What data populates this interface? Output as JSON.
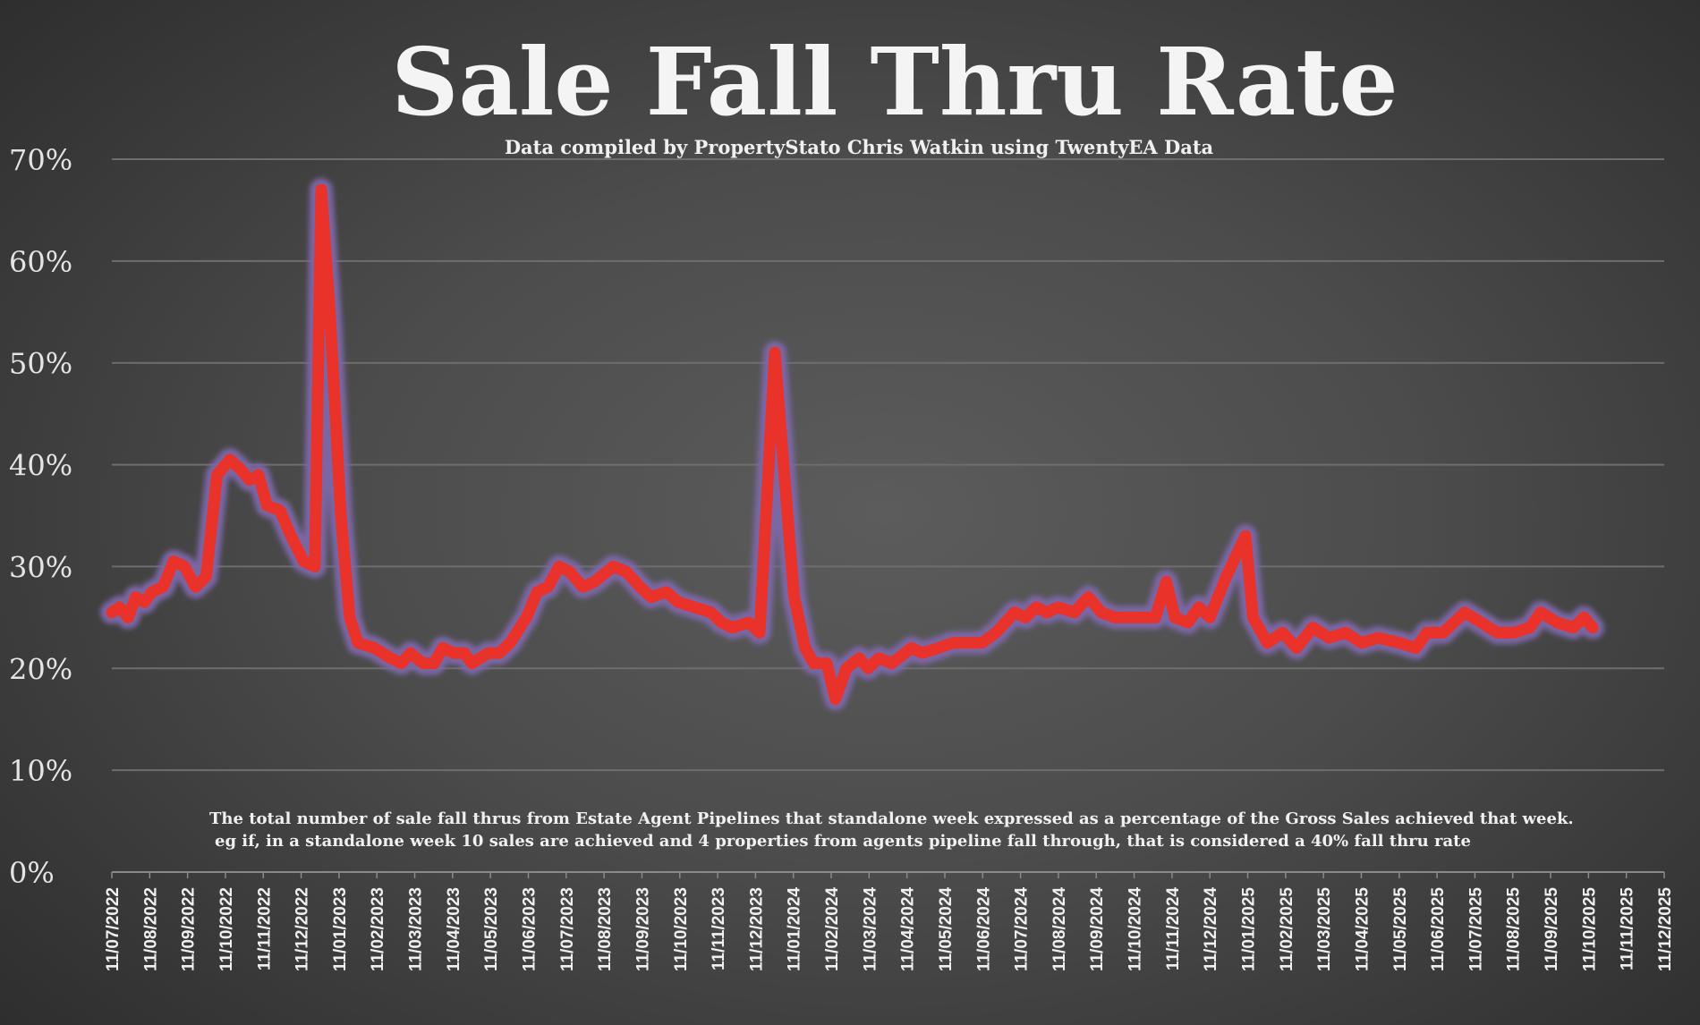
{
  "chart_data": {
    "type": "line",
    "title": "Sale Fall Thru Rate",
    "subtitle": "Data compiled by PropertyStato Chris Watkin using TwentyEA Data",
    "annotation": [
      "The total number of sale fall thrus from Estate Agent Pipelines that standalone week expressed as a percentage of the Gross Sales achieved that week.",
      "eg if, in a standalone week 10 sales are achieved and 4 properties from agents pipeline fall through, that is considered a 40%  fall thru rate"
    ],
    "xlabel": "",
    "ylabel": "",
    "x_unit": "months since 11/07/2022",
    "xlim": [
      0,
      41
    ],
    "ylim": [
      0,
      70
    ],
    "grid": true,
    "y_ticks": [
      "0%",
      "10%",
      "20%",
      "30%",
      "40%",
      "50%",
      "60%",
      "70%"
    ],
    "x_ticks": [
      "11/07/2022",
      "11/08/2022",
      "11/09/2022",
      "11/10/2022",
      "11/11/2022",
      "11/12/2022",
      "11/01/2023",
      "11/02/2023",
      "11/03/2023",
      "11/04/2023",
      "11/05/2023",
      "11/06/2023",
      "11/07/2023",
      "11/08/2023",
      "11/09/2023",
      "11/10/2023",
      "11/11/2023",
      "11/12/2023",
      "11/01/2024",
      "11/02/2024",
      "11/03/2024",
      "11/04/2024",
      "11/05/2024",
      "11/06/2024",
      "11/07/2024",
      "11/08/2024",
      "11/09/2024",
      "11/10/2024",
      "11/11/2024",
      "11/12/2024",
      "11/01/2025",
      "11/02/2025",
      "11/03/2025",
      "11/04/2025",
      "11/05/2025",
      "11/06/2025",
      "11/07/2025",
      "11/08/2025",
      "11/09/2025",
      "11/10/2025",
      "11/11/2025",
      "11/12/2025"
    ],
    "series": [
      {
        "name": "Sale Fall Thru Rate (%)",
        "color": "#e8322a",
        "glow": "#7e68a8",
        "x": [
          0,
          0.2,
          0.43,
          0.63,
          0.86,
          1.06,
          1.35,
          1.63,
          1.92,
          2.21,
          2.49,
          2.78,
          3.12,
          3.41,
          3.64,
          3.87,
          4.1,
          4.44,
          4.73,
          5.07,
          5.36,
          5.53,
          5.76,
          6.05,
          6.28,
          6.5,
          6.93,
          7.36,
          7.65,
          7.88,
          8.22,
          8.51,
          8.74,
          9.03,
          9.31,
          9.51,
          9.94,
          10.23,
          10.52,
          10.95,
          11.23,
          11.52,
          11.81,
          12.09,
          12.44,
          12.75,
          13.24,
          13.58,
          13.95,
          14.24,
          14.64,
          14.96,
          15.39,
          15.82,
          16.1,
          16.39,
          16.82,
          17.11,
          17.51,
          17.74,
          18.02,
          18.31,
          18.54,
          18.88,
          19.11,
          19.4,
          19.74,
          19.97,
          20.26,
          20.6,
          21.12,
          21.4,
          21.83,
          22.21,
          22.55,
          22.98,
          23.35,
          23.84,
          24.13,
          24.41,
          24.7,
          24.99,
          25.42,
          25.79,
          26.13,
          26.5,
          26.85,
          27.28,
          27.56,
          27.85,
          28.08,
          28.42,
          28.71,
          29,
          29.43,
          29.94,
          30.14,
          30.52,
          30.92,
          31.29,
          31.72,
          32.15,
          32.58,
          33.01,
          33.44,
          34.01,
          34.44,
          34.73,
          35.16,
          35.73,
          36.16,
          36.59,
          37.02,
          37.45,
          37.74,
          38.17,
          38.6,
          38.88,
          39.11
        ],
        "values": [
          25.5,
          26,
          25,
          27,
          26.5,
          27.5,
          28,
          30.5,
          30,
          28,
          29,
          39,
          40.5,
          39.5,
          38.5,
          39,
          36,
          35.5,
          33,
          30.5,
          30,
          67,
          55,
          35,
          25,
          22.5,
          22,
          21,
          20.5,
          21.5,
          20.5,
          20.5,
          22,
          21.5,
          21.5,
          20.5,
          21.5,
          21.5,
          22.5,
          25,
          27.5,
          28,
          30,
          29.5,
          28,
          28.5,
          30,
          29.5,
          28,
          27,
          27.5,
          26.5,
          26,
          25.5,
          24.5,
          24,
          24.5,
          23.5,
          51,
          40,
          27,
          22,
          20.5,
          20.5,
          17,
          20,
          21,
          20,
          21,
          20.5,
          22,
          21.5,
          22,
          22.5,
          22.5,
          22.5,
          23.5,
          25.5,
          25,
          26,
          25.5,
          26,
          25.5,
          27,
          25.5,
          25,
          25,
          25,
          25,
          28.5,
          25,
          24.5,
          26,
          25,
          29,
          33,
          25,
          22.5,
          23.5,
          22,
          24,
          23,
          23.5,
          22.5,
          23,
          22.5,
          22,
          23.5,
          23.5,
          25.5,
          24.5,
          23.5,
          23.5,
          24,
          25.5,
          24.5,
          24,
          25,
          24
        ]
      }
    ]
  }
}
